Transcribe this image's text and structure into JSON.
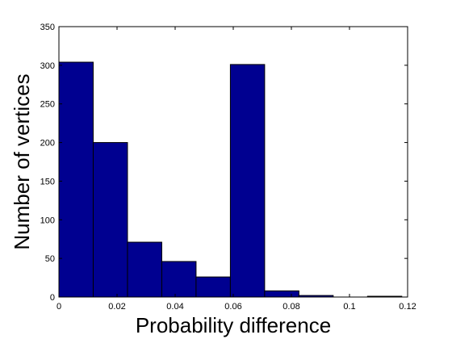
{
  "chart_data": {
    "type": "bar",
    "subtype": "histogram",
    "title": "",
    "xlabel": "Probability difference",
    "ylabel": "Number of vertices",
    "xlim": [
      0,
      0.12
    ],
    "ylim": [
      0,
      350
    ],
    "xticks": [
      0,
      0.02,
      0.04,
      0.06,
      0.08,
      0.1,
      0.12
    ],
    "xtick_labels": [
      "0",
      "0.02",
      "0.04",
      "0.06",
      "0.08",
      "0.1",
      "0.12"
    ],
    "yticks": [
      0,
      50,
      100,
      150,
      200,
      250,
      300,
      350
    ],
    "ytick_labels": [
      "0",
      "50",
      "100",
      "150",
      "200",
      "250",
      "300",
      "350"
    ],
    "grid": false,
    "bar_color": "#000090",
    "edge_color": "#000000",
    "bins": [
      {
        "x0": 0.0,
        "x1": 0.0118,
        "count": 304
      },
      {
        "x0": 0.0118,
        "x1": 0.0236,
        "count": 200
      },
      {
        "x0": 0.0236,
        "x1": 0.0354,
        "count": 71
      },
      {
        "x0": 0.0354,
        "x1": 0.0472,
        "count": 46
      },
      {
        "x0": 0.0472,
        "x1": 0.059,
        "count": 26
      },
      {
        "x0": 0.059,
        "x1": 0.0708,
        "count": 301
      },
      {
        "x0": 0.0708,
        "x1": 0.0826,
        "count": 8
      },
      {
        "x0": 0.0826,
        "x1": 0.0944,
        "count": 2
      },
      {
        "x0": 0.0944,
        "x1": 0.1062,
        "count": 0
      },
      {
        "x0": 0.1062,
        "x1": 0.118,
        "count": 1
      }
    ]
  }
}
